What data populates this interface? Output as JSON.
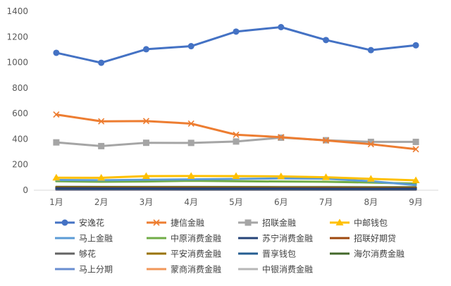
{
  "chart_data": {
    "type": "line",
    "title": "",
    "xlabel": "",
    "ylabel": "",
    "categories": [
      "1月",
      "2月",
      "3月",
      "4月",
      "5月",
      "6月",
      "7月",
      "8月",
      "9月"
    ],
    "yticks": [
      "0",
      "200",
      "400",
      "600",
      "800",
      "1000",
      "1200",
      "1400"
    ],
    "ylim": [
      0,
      1400
    ],
    "grid": false,
    "legend_position": "bottom",
    "series": [
      {
        "name": "安逸花",
        "color": "#4472C4",
        "marker": "circle",
        "values": [
          1075,
          997,
          1103,
          1127,
          1241,
          1276,
          1175,
          1096,
          1134
        ]
      },
      {
        "name": "捷信金融",
        "color": "#ED7D31",
        "marker": "x",
        "values": [
          592,
          539,
          541,
          521,
          434,
          415,
          389,
          360,
          321
        ]
      },
      {
        "name": "招联金融",
        "color": "#A5A5A5",
        "marker": "square",
        "values": [
          374,
          345,
          371,
          370,
          381,
          411,
          391,
          378,
          378
        ]
      },
      {
        "name": "中邮钱包",
        "color": "#FFC000",
        "marker": "triangle",
        "values": [
          98,
          97,
          110,
          111,
          110,
          108,
          101,
          89,
          77
        ]
      },
      {
        "name": "马上金融",
        "color": "#5B9BD5",
        "marker": "none",
        "values": [
          80,
          78,
          82,
          85,
          88,
          92,
          90,
          70,
          40
        ]
      },
      {
        "name": "中原消费金融",
        "color": "#70AD47",
        "marker": "none",
        "values": [
          70,
          66,
          68,
          74,
          70,
          68,
          66,
          60,
          52
        ]
      },
      {
        "name": "苏宁消费金融",
        "color": "#264478",
        "marker": "none",
        "values": [
          15,
          14,
          14,
          13,
          13,
          13,
          12,
          12,
          12
        ]
      },
      {
        "name": "招联好期贷",
        "color": "#9E480E",
        "marker": "none",
        "values": [
          18,
          17,
          17,
          17,
          16,
          16,
          16,
          15,
          15
        ]
      },
      {
        "name": "够花",
        "color": "#636363",
        "marker": "none",
        "values": [
          12,
          12,
          11,
          11,
          11,
          10,
          10,
          10,
          10
        ]
      },
      {
        "name": "平安消费金融",
        "color": "#997300",
        "marker": "none",
        "values": [
          22,
          21,
          21,
          21,
          20,
          20,
          20,
          19,
          19
        ]
      },
      {
        "name": "晋享钱包",
        "color": "#255E91",
        "marker": "none",
        "values": [
          8,
          8,
          8,
          7,
          7,
          7,
          7,
          7,
          7
        ]
      },
      {
        "name": "海尔消费金融",
        "color": "#43682B",
        "marker": "none",
        "values": [
          25,
          25,
          24,
          24,
          24,
          23,
          23,
          22,
          22
        ]
      },
      {
        "name": "马上分期",
        "color": "#698ED0",
        "marker": "none",
        "values": [
          5,
          5,
          5,
          5,
          5,
          5,
          5,
          5,
          5
        ]
      },
      {
        "name": "蒙商消费金融",
        "color": "#F1975A",
        "marker": "none",
        "values": [
          3,
          3,
          3,
          3,
          3,
          3,
          3,
          3,
          3
        ]
      },
      {
        "name": "中银消费金融",
        "color": "#B7B7B7",
        "marker": "none",
        "values": [
          28,
          27,
          27,
          27,
          26,
          26,
          26,
          25,
          25
        ]
      }
    ]
  }
}
